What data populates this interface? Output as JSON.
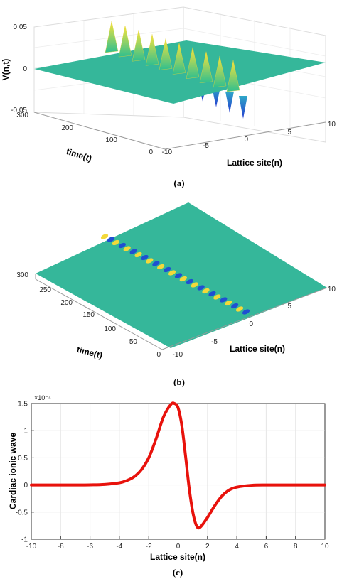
{
  "chart_data": [
    {
      "type": "surface3d",
      "panel": "(a)",
      "zlabel": "V(n,t)",
      "xlabel": "Lattice site(n)",
      "ylabel": "time(t)",
      "xlim": [
        -10,
        10
      ],
      "ylim": [
        0,
        300
      ],
      "zlim": [
        -0.05,
        0.05
      ],
      "x_ticks": [
        "-10",
        "-5",
        "0",
        "5",
        "10"
      ],
      "y_ticks": [
        "0",
        "100",
        "200",
        "300"
      ],
      "z_ticks": [
        "0.05",
        "0",
        "-0.05"
      ],
      "colormap": "parula",
      "peak_count": 10,
      "peak_amplitude": 0.05
    },
    {
      "type": "surface3d",
      "panel": "(b)",
      "xlabel": "Lattice site(n)",
      "ylabel": "time(t)",
      "xlim": [
        -10,
        10
      ],
      "ylim": [
        0,
        300
      ],
      "x_ticks": [
        "-10",
        "-5",
        "0",
        "5",
        "10"
      ],
      "y_ticks": [
        "0",
        "50",
        "100",
        "150",
        "200",
        "250",
        "300"
      ],
      "colormap": "parula",
      "stripe_count": 13
    },
    {
      "type": "line",
      "panel": "(c)",
      "xlabel": "Lattice site(n)",
      "ylabel": "Cardiac ionic wave",
      "xlim": [
        -10,
        10
      ],
      "ylim": [
        -1,
        1.5
      ],
      "x_ticks": [
        "-10",
        "-8",
        "-6",
        "-4",
        "-2",
        "0",
        "2",
        "4",
        "6",
        "8",
        "10"
      ],
      "y_ticks": [
        "1.5",
        "1",
        "0.5",
        "0",
        "-0.5",
        "-1"
      ],
      "y_ticks_values": [
        1.5,
        1,
        0.5,
        0,
        -0.5,
        -1
      ],
      "y_exponent": "×10⁻⁴",
      "grid": true,
      "color": "#e8120c",
      "x": [
        -10,
        -9,
        -8,
        -7,
        -6,
        -5,
        -4,
        -3.5,
        -3,
        -2.5,
        -2,
        -1.5,
        -1,
        -0.5,
        -0.25,
        0,
        0.25,
        0.5,
        0.75,
        1,
        1.25,
        1.5,
        2,
        2.5,
        3,
        3.5,
        4,
        5,
        6,
        7,
        8,
        9,
        10
      ],
      "values": [
        0,
        0,
        0,
        0,
        0.002,
        0.01,
        0.04,
        0.08,
        0.15,
        0.28,
        0.5,
        0.85,
        1.25,
        1.48,
        1.5,
        1.42,
        1.1,
        0.55,
        -0.05,
        -0.5,
        -0.75,
        -0.78,
        -0.6,
        -0.38,
        -0.2,
        -0.09,
        -0.04,
        -0.006,
        0,
        0,
        0,
        0,
        0
      ]
    }
  ],
  "captions": {
    "a": "(a)",
    "b": "(b)",
    "c": "(c)"
  }
}
